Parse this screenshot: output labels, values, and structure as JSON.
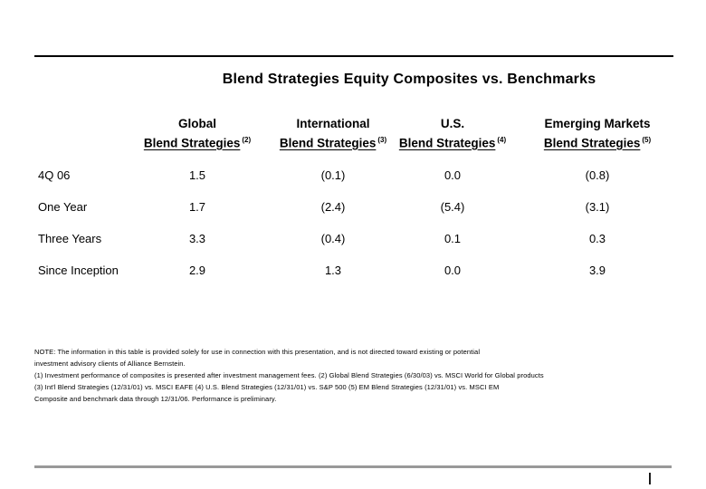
{
  "title": "Blend Strategies Equity Composites vs. Benchmarks",
  "table": {
    "columns": [
      {
        "region": "Global",
        "strategy": "Blend Strategies",
        "ref": "(2)"
      },
      {
        "region": "International",
        "strategy": "Blend Strategies",
        "ref": "(3)"
      },
      {
        "region": "U.S.",
        "strategy": "Blend Strategies",
        "ref": "(4)"
      },
      {
        "region": "Emerging Markets",
        "strategy": "Blend Strategies",
        "ref": "(5)"
      }
    ],
    "rows": [
      {
        "label": "4Q 06",
        "values": [
          "1.5",
          "(0.1)",
          "0.0",
          "(0.8)"
        ]
      },
      {
        "label": "One Year",
        "values": [
          "1.7",
          "(2.4)",
          "(5.4)",
          "(3.1)"
        ]
      },
      {
        "label": "Three Years",
        "values": [
          "3.3",
          "(0.4)",
          "0.1",
          "0.3"
        ]
      },
      {
        "label": "Since Inception",
        "values": [
          "2.9",
          "1.3",
          "0.0",
          "3.9"
        ]
      }
    ]
  },
  "footnotes": {
    "line1": "NOTE: The information in this table is provided solely for use in connection with this presentation, and is not directed toward existing or potential",
    "line2": "investment advisory clients of Alliance Bernstein.",
    "line3": "(1) Investment performance of composites is presented after investment management fees. (2) Global Blend Strategies (6/30/03) vs. MSCI World for Global products",
    "line4": "(3) Int'l Blend Strategies (12/31/01) vs. MSCI EAFE (4) U.S. Blend Strategies (12/31/01) vs. S&P 500 (5) EM Blend Strategies (12/31/01) vs. MSCI EM",
    "line5": "Composite and benchmark data through 12/31/06. Performance is preliminary."
  },
  "footer": {
    "page_marker": "|"
  },
  "colors": {
    "rule_top": "#000000",
    "rule_bottom": "#999999",
    "text": "#000000"
  }
}
